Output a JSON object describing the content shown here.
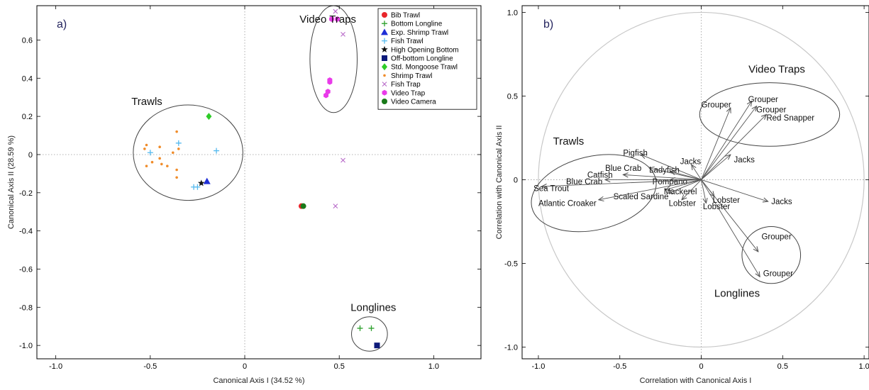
{
  "chart_data": [
    {
      "type": "scatter",
      "panel_label": "a)",
      "xlabel": "Canonical Axis I (34.52 %)",
      "ylabel": "Canonical Axis II (28.59 %)",
      "xlim": [
        -1.1,
        1.25
      ],
      "ylim": [
        -1.07,
        0.78
      ],
      "xticks": [
        -1.0,
        -0.5,
        0,
        0.5,
        1.0
      ],
      "xtick_labels": [
        "-1.0",
        "-0.5",
        "0",
        "0.5",
        "1.0"
      ],
      "yticks": [
        -1.0,
        -0.8,
        -0.6,
        -0.4,
        -0.2,
        0,
        0.2,
        0.4,
        0.6
      ],
      "ytick_labels": [
        "-1.0",
        "-0.8",
        "-0.6",
        "-0.4",
        "-0.2",
        "0",
        "0.2",
        "0.4",
        "0.6"
      ],
      "legend_position": "top-right",
      "series": [
        {
          "name": "Bib Trawl",
          "marker": "circle",
          "color": "#e8262b",
          "points": [
            [
              0.3,
              -0.27
            ]
          ]
        },
        {
          "name": "Bottom Longline",
          "marker": "plus",
          "color": "#2ca02c",
          "points": [
            [
              0.61,
              -0.91
            ],
            [
              0.67,
              -0.91
            ]
          ]
        },
        {
          "name": "Exp. Shrimp Trawl",
          "marker": "triangle",
          "color": "#1f2fd6",
          "points": [
            [
              -0.2,
              -0.14
            ]
          ]
        },
        {
          "name": "Fish Trawl",
          "marker": "plus",
          "color": "#54b9ee",
          "points": [
            [
              -0.5,
              0.01
            ],
            [
              -0.35,
              0.06
            ],
            [
              -0.15,
              0.02
            ],
            [
              -0.27,
              -0.17
            ],
            [
              -0.25,
              -0.17
            ]
          ]
        },
        {
          "name": "High Opening Bottom",
          "marker": "star",
          "color": "#111111",
          "points": [
            [
              -0.23,
              -0.15
            ]
          ]
        },
        {
          "name": "Off-bottom Longline",
          "marker": "square",
          "color": "#0d1a7a",
          "points": [
            [
              0.7,
              -1.0
            ]
          ]
        },
        {
          "name": "Std. Mongoose Trawl",
          "marker": "diamond",
          "color": "#2ecc28",
          "points": [
            [
              -0.19,
              0.2
            ]
          ]
        },
        {
          "name": "Shrimp Trawl",
          "marker": "dot",
          "color": "#f08c2a",
          "points": [
            [
              -0.36,
              0.12
            ],
            [
              -0.52,
              0.05
            ],
            [
              -0.53,
              0.03
            ],
            [
              -0.45,
              0.04
            ],
            [
              -0.35,
              0.03
            ],
            [
              -0.38,
              0.01
            ],
            [
              -0.45,
              -0.02
            ],
            [
              -0.49,
              -0.04
            ],
            [
              -0.44,
              -0.05
            ],
            [
              -0.41,
              -0.06
            ],
            [
              -0.52,
              -0.06
            ],
            [
              -0.36,
              -0.08
            ],
            [
              -0.36,
              -0.12
            ]
          ]
        },
        {
          "name": "Fish Trap",
          "marker": "cross",
          "color": "#b86ac9",
          "points": [
            [
              0.48,
              0.75
            ],
            [
              0.52,
              0.63
            ],
            [
              0.52,
              -0.03
            ],
            [
              0.48,
              -0.27
            ]
          ]
        },
        {
          "name": "Video Trap",
          "marker": "hex",
          "color": "#e93be9",
          "points": [
            [
              0.46,
              0.71
            ],
            [
              0.49,
              0.71
            ],
            [
              0.45,
              0.39
            ],
            [
              0.45,
              0.38
            ],
            [
              0.44,
              0.33
            ],
            [
              0.43,
              0.31
            ]
          ]
        },
        {
          "name": "Video Camera",
          "marker": "circle",
          "color": "#1a7a1a",
          "points": [
            [
              0.31,
              -0.27
            ]
          ]
        }
      ],
      "annotations": [
        {
          "text": "Video Traps",
          "x": 0.29,
          "y": 0.69
        },
        {
          "text": "Trawls",
          "x": -0.6,
          "y": 0.26
        },
        {
          "text": "Longlines",
          "x": 0.56,
          "y": -0.82
        }
      ],
      "groups": [
        {
          "name": "Trawls",
          "cx": -0.3,
          "cy": 0.01,
          "rx": 0.29,
          "ry": 0.25
        },
        {
          "name": "Video Traps",
          "cx": 0.47,
          "cy": 0.5,
          "rx": 0.125,
          "ry": 0.28
        },
        {
          "name": "Longlines",
          "cx": 0.66,
          "cy": -0.94,
          "rx": 0.095,
          "ry": 0.09
        }
      ]
    },
    {
      "type": "biplot",
      "panel_label": "b)",
      "xlabel": "Correlation with Canonical Axis I",
      "ylabel": "Correlation with Canonical Axis II",
      "xlim": [
        -1.1,
        1.03
      ],
      "ylim": [
        -1.07,
        1.04
      ],
      "xticks": [
        -1.0,
        -0.5,
        0,
        0.5,
        1.0
      ],
      "xtick_labels": [
        "-1.0",
        "-0.5",
        "0",
        "0.5",
        "1.0"
      ],
      "yticks": [
        -1.0,
        -0.5,
        0,
        0.5,
        1.0
      ],
      "ytick_labels": [
        "-1.0",
        "-0.5",
        "0",
        "0.5",
        "1.0"
      ],
      "vectors": [
        {
          "label": "Grouper",
          "x": 0.31,
          "y": 0.47,
          "lx": 0.38,
          "ly": 0.48,
          "anchor": "middle"
        },
        {
          "label": "Grouper",
          "x": 0.34,
          "y": 0.44,
          "lx": 0.43,
          "ly": 0.42,
          "anchor": "middle"
        },
        {
          "label": "Red Snapper",
          "x": 0.4,
          "y": 0.39,
          "lx": 0.4,
          "ly": 0.37,
          "anchor": "start"
        },
        {
          "label": "Grouper",
          "x": 0.18,
          "y": 0.43,
          "lx": 0.0,
          "ly": 0.45,
          "anchor": "start"
        },
        {
          "label": "Jacks",
          "x": 0.18,
          "y": 0.15,
          "lx": 0.2,
          "ly": 0.12,
          "anchor": "start"
        },
        {
          "label": "Jacks",
          "x": 0.41,
          "y": -0.13,
          "lx": 0.43,
          "ly": -0.13,
          "anchor": "start"
        },
        {
          "label": "Grouper",
          "x": 0.35,
          "y": -0.43,
          "lx": 0.37,
          "ly": -0.34,
          "anchor": "start"
        },
        {
          "label": "Grouper",
          "x": 0.36,
          "y": -0.58,
          "lx": 0.38,
          "ly": -0.56,
          "anchor": "start"
        },
        {
          "label": "Pigfish",
          "x": -0.37,
          "y": 0.15,
          "lx": -0.48,
          "ly": 0.16,
          "anchor": "start"
        },
        {
          "label": "Jacks",
          "x": -0.06,
          "y": 0.09,
          "lx": -0.13,
          "ly": 0.11,
          "anchor": "start"
        },
        {
          "label": "Blue Crab",
          "x": -0.32,
          "y": 0.07,
          "lx": -0.59,
          "ly": 0.07,
          "anchor": "start"
        },
        {
          "label": "Ladyfish",
          "x": -0.19,
          "y": 0.05,
          "lx": -0.32,
          "ly": 0.06,
          "anchor": "start"
        },
        {
          "label": "Catfish",
          "x": -0.48,
          "y": 0.03,
          "lx": -0.7,
          "ly": 0.03,
          "anchor": "start"
        },
        {
          "label": "Blue Crab",
          "x": -0.59,
          "y": 0.0,
          "lx": -0.83,
          "ly": -0.01,
          "anchor": "start"
        },
        {
          "label": "Pompano",
          "x": -0.19,
          "y": 0.0,
          "lx": -0.3,
          "ly": -0.01,
          "anchor": "start"
        },
        {
          "label": "Sea Trout",
          "x": -0.98,
          "y": -0.04,
          "lx": -1.03,
          "ly": -0.05,
          "anchor": "start"
        },
        {
          "label": "Mackerel",
          "x": -0.22,
          "y": -0.06,
          "lx": -0.23,
          "ly": -0.07,
          "anchor": "start"
        },
        {
          "label": "Scaled Sardine",
          "x": -0.2,
          "y": -0.08,
          "lx": -0.54,
          "ly": -0.1,
          "anchor": "start"
        },
        {
          "label": "Atlantic Croaker",
          "x": -0.63,
          "y": -0.12,
          "lx": -1.0,
          "ly": -0.14,
          "anchor": "start"
        },
        {
          "label": "Lobster",
          "x": -0.12,
          "y": -0.12,
          "lx": -0.2,
          "ly": -0.14,
          "anchor": "start"
        },
        {
          "label": "Lobster",
          "x": 0.08,
          "y": -0.1,
          "lx": 0.07,
          "ly": -0.12,
          "anchor": "start"
        },
        {
          "label": "Lobster",
          "x": 0.03,
          "y": -0.14,
          "lx": 0.01,
          "ly": -0.16,
          "anchor": "start"
        }
      ],
      "annotations": [
        {
          "text": "Video Traps",
          "x": 0.29,
          "y": 0.64
        },
        {
          "text": "Trawls",
          "x": -0.91,
          "y": 0.21
        },
        {
          "text": "Longlines",
          "x": 0.08,
          "y": -0.7
        }
      ],
      "groups": [
        {
          "name": "Trawls",
          "cx": -0.66,
          "cy": -0.08,
          "rx": 0.39,
          "ry": 0.22,
          "rotate": -13
        },
        {
          "name": "Video Traps",
          "cx": 0.42,
          "cy": 0.39,
          "rx": 0.43,
          "ry": 0.19
        },
        {
          "name": "Longlines",
          "cx": 0.43,
          "cy": -0.45,
          "rx": 0.18,
          "ry": 0.17
        }
      ],
      "unit_circle": true
    }
  ]
}
